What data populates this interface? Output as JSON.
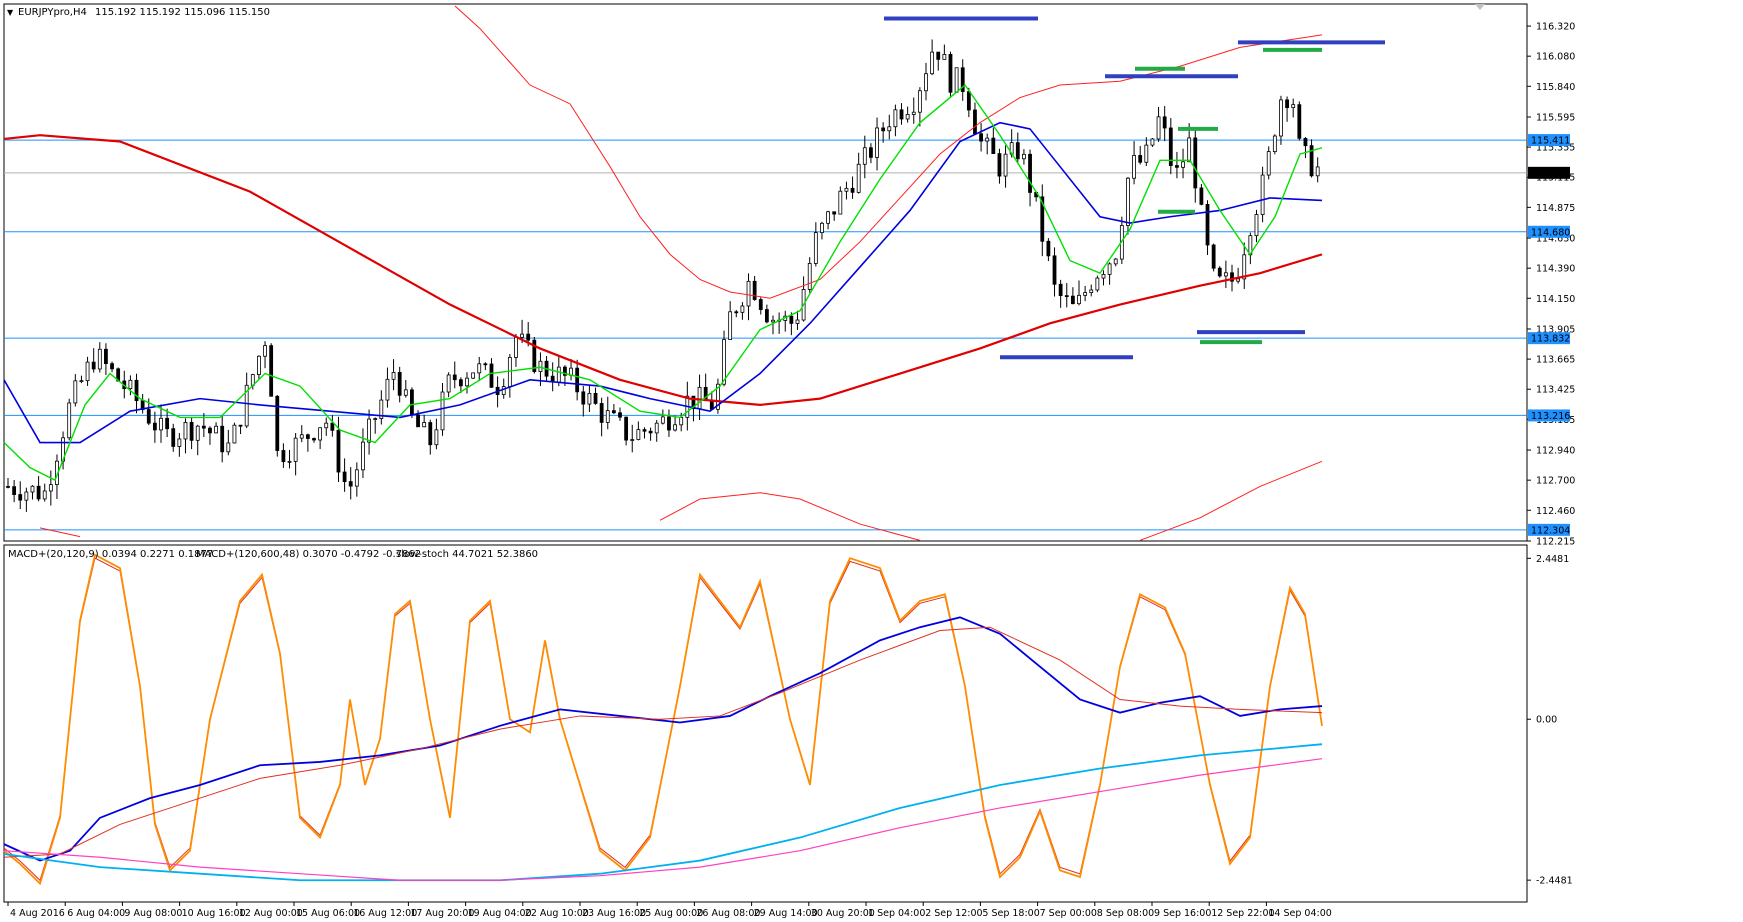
{
  "main_header": {
    "symbol": "EURJPYpro,H4",
    "ohlc": "115.192 115.192 115.096 115.150"
  },
  "indicator_header": {
    "macd1": "MACD+(20,120,9) 0.0394 0.2271 0.1877",
    "macd2": "MACD+(120,600,48) 0.3070 -0.4792 -0.7862",
    "stoch": "slow-stoch 44.7021 52.3860"
  },
  "colors": {
    "grid_frame": "#000000",
    "hline": "#1e90ff",
    "ma_slow": "#e00000",
    "bollinger": "#ff2020",
    "ma_blue": "#0000e0",
    "ma_green": "#00e000",
    "marker_blue": "#3040c0",
    "marker_green": "#22aa44",
    "stoch_orange": "#ff8c00",
    "stoch_signal": "#e03020",
    "macd_cyan": "#00b0f0",
    "macd_magenta": "#ff40c0"
  },
  "chart_data": {
    "type": "candlestick",
    "price_axis_ticks": [
      "116.320",
      "116.080",
      "115.840",
      "115.595",
      "115.355",
      "115.115",
      "114.875",
      "114.630",
      "114.390",
      "114.150",
      "113.905",
      "113.665",
      "113.425",
      "113.185",
      "112.940",
      "112.700",
      "112.460",
      "112.215"
    ],
    "price_range": [
      112.215,
      116.48
    ],
    "horizontal_levels": [
      115.411,
      114.68,
      113.832,
      113.216,
      112.304
    ],
    "level_labels": [
      "115.411",
      "114.680",
      "113.832",
      "113.216",
      "112.304"
    ],
    "current_price_label": "115.150",
    "current_price": 115.15,
    "time_labels": [
      "4 Aug 2016",
      "6 Aug 04:00",
      "9 Aug 08:00",
      "10 Aug 16:00",
      "12 Aug 00:00",
      "15 Aug 06:00",
      "16 Aug 12:00",
      "17 Aug 20:00",
      "19 Aug 04:00",
      "22 Aug 10:00",
      "23 Aug 16:00",
      "25 Aug 00:00",
      "26 Aug 08:00",
      "29 Aug 14:00",
      "30 Aug 20:00",
      "1 Sep 04:00",
      "2 Sep 12:00",
      "5 Sep 18:00",
      "7 Sep 00:00",
      "8 Sep 08:00",
      "9 Sep 16:00",
      "12 Sep 22:00",
      "14 Sep 04:00"
    ],
    "indicator_axis_ticks": [
      "2.4481",
      "0.00",
      "-2.4481"
    ],
    "indicator_range": [
      -2.75,
      2.62
    ]
  }
}
